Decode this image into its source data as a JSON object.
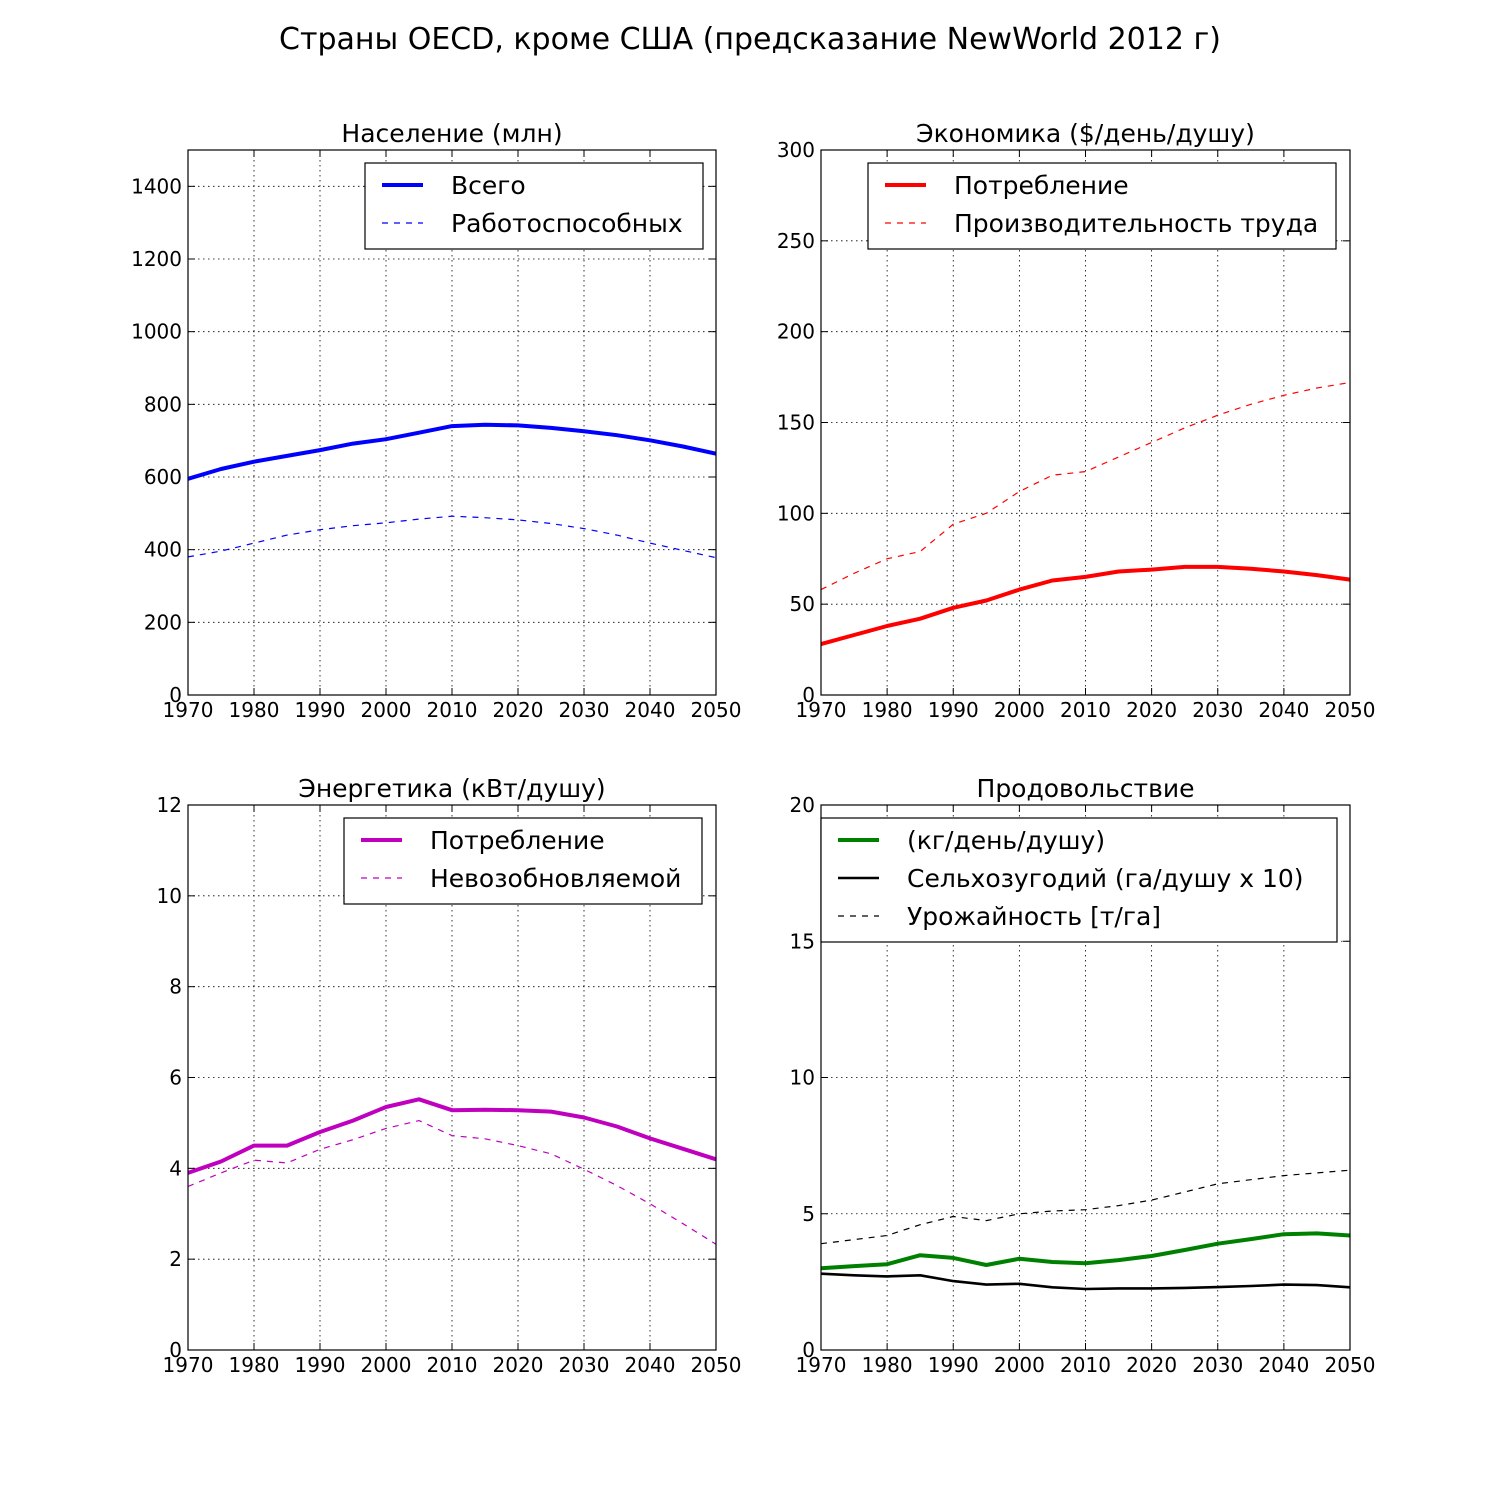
{
  "title": "Страны OECD, кроме США (предсказание NewWorld 2012 г)",
  "chart_data": [
    {
      "type": "line",
      "title": "Население (млн)",
      "xlim": [
        1970,
        2050
      ],
      "ylim": [
        0,
        1500
      ],
      "xticks": [
        1970,
        1980,
        1990,
        2000,
        2010,
        2020,
        2030,
        2040,
        2050
      ],
      "yticks": [
        0,
        200,
        400,
        600,
        800,
        1000,
        1200,
        1400
      ],
      "grid": true,
      "legend_position": "top-right",
      "x": [
        1970,
        1975,
        1980,
        1985,
        1990,
        1995,
        2000,
        2005,
        2010,
        2015,
        2020,
        2025,
        2030,
        2035,
        2040,
        2045,
        2050
      ],
      "series": [
        {
          "name": "Всего",
          "color": "#0000ff",
          "style": "solid",
          "values": [
            595,
            622,
            642,
            658,
            674,
            692,
            704,
            722,
            740,
            744,
            742,
            735,
            726,
            715,
            701,
            684,
            664
          ]
        },
        {
          "name": "Работоспособных",
          "color": "#0000ff",
          "style": "dashed",
          "values": [
            380,
            396,
            418,
            440,
            455,
            466,
            474,
            484,
            492,
            488,
            482,
            472,
            458,
            440,
            418,
            398,
            378
          ]
        }
      ]
    },
    {
      "type": "line",
      "title": "Экономика ($/день/душу)",
      "xlim": [
        1970,
        2050
      ],
      "ylim": [
        0,
        300
      ],
      "xticks": [
        1970,
        1980,
        1990,
        2000,
        2010,
        2020,
        2030,
        2040,
        2050
      ],
      "yticks": [
        0,
        50,
        100,
        150,
        200,
        250,
        300
      ],
      "grid": true,
      "legend_position": "top-right",
      "x": [
        1970,
        1975,
        1980,
        1985,
        1990,
        1995,
        2000,
        2005,
        2010,
        2015,
        2020,
        2025,
        2030,
        2035,
        2040,
        2045,
        2050
      ],
      "series": [
        {
          "name": "Потребление",
          "color": "#ff0000",
          "style": "solid",
          "values": [
            28,
            33,
            38,
            42,
            48,
            52,
            58,
            63,
            65,
            68,
            69,
            70.5,
            70.5,
            69.5,
            68,
            66,
            63.5
          ]
        },
        {
          "name": "Производительность труда",
          "color": "#ff0000",
          "style": "dashed",
          "values": [
            58,
            67,
            75,
            79,
            94,
            100,
            112,
            121,
            123,
            131,
            139,
            147,
            154,
            160,
            165,
            169,
            172
          ]
        }
      ]
    },
    {
      "type": "line",
      "title": "Энергетика (кВт/душу)",
      "xlim": [
        1970,
        2050
      ],
      "ylim": [
        0,
        12
      ],
      "xticks": [
        1970,
        1980,
        1990,
        2000,
        2010,
        2020,
        2030,
        2040,
        2050
      ],
      "yticks": [
        0,
        2,
        4,
        6,
        8,
        10,
        12
      ],
      "grid": true,
      "legend_position": "top-right",
      "x": [
        1970,
        1975,
        1980,
        1985,
        1990,
        1995,
        2000,
        2005,
        2010,
        2015,
        2020,
        2025,
        2030,
        2035,
        2040,
        2045,
        2050
      ],
      "series": [
        {
          "name": "Потребление",
          "color": "#bf00bf",
          "style": "solid",
          "values": [
            3.9,
            4.15,
            4.5,
            4.5,
            4.8,
            5.05,
            5.35,
            5.52,
            5.28,
            5.29,
            5.28,
            5.25,
            5.12,
            4.92,
            4.66,
            4.43,
            4.2
          ]
        },
        {
          "name": "Невозобновляемой",
          "color": "#bf00bf",
          "style": "dashed",
          "values": [
            3.6,
            3.9,
            4.18,
            4.12,
            4.42,
            4.63,
            4.88,
            5.05,
            4.72,
            4.65,
            4.5,
            4.32,
            3.98,
            3.62,
            3.22,
            2.78,
            2.33
          ]
        }
      ]
    },
    {
      "type": "line",
      "title": "Продовольствие",
      "xlim": [
        1970,
        2050
      ],
      "ylim": [
        0,
        20
      ],
      "xticks": [
        1970,
        1980,
        1990,
        2000,
        2010,
        2020,
        2030,
        2040,
        2050
      ],
      "yticks": [
        0,
        5,
        10,
        15,
        20
      ],
      "grid": true,
      "legend_position": "top-right",
      "x": [
        1970,
        1975,
        1980,
        1985,
        1990,
        1995,
        2000,
        2005,
        2010,
        2015,
        2020,
        2025,
        2030,
        2035,
        2040,
        2045,
        2050
      ],
      "series": [
        {
          "name": "(кг/день/душу)",
          "color": "#008000",
          "style": "solid",
          "values": [
            3.0,
            3.08,
            3.15,
            3.48,
            3.38,
            3.12,
            3.35,
            3.23,
            3.18,
            3.3,
            3.45,
            3.67,
            3.9,
            4.07,
            4.25,
            4.28,
            4.2
          ]
        },
        {
          "name": "Сельхозугодий (га/душу x 10)",
          "color": "#000000",
          "style": "solid",
          "values": [
            2.8,
            2.74,
            2.7,
            2.74,
            2.53,
            2.4,
            2.43,
            2.3,
            2.24,
            2.26,
            2.26,
            2.28,
            2.31,
            2.35,
            2.4,
            2.38,
            2.3
          ]
        },
        {
          "name": "Урожайность [т/га]",
          "color": "#000000",
          "style": "dashed",
          "values": [
            3.9,
            4.05,
            4.2,
            4.6,
            4.9,
            4.75,
            5.0,
            5.1,
            5.15,
            5.3,
            5.5,
            5.8,
            6.1,
            6.25,
            6.4,
            6.5,
            6.6
          ]
        }
      ]
    }
  ]
}
